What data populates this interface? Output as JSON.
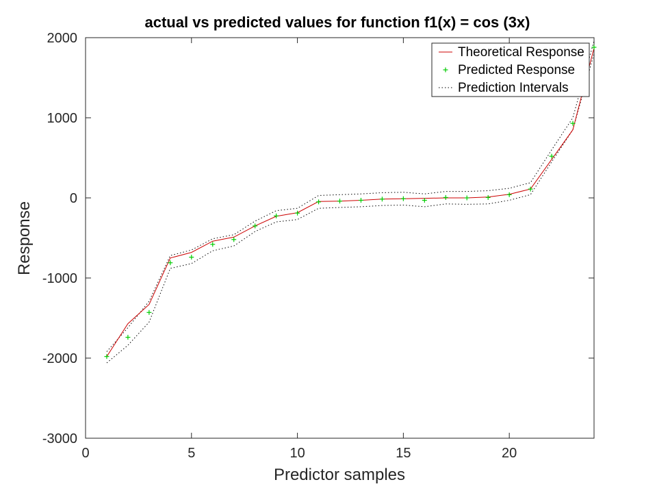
{
  "chart_data": {
    "type": "line",
    "title": "actual vs predicted values for function f1(x) = cos (3x)",
    "xlabel": "Predictor samples",
    "ylabel": "Response",
    "xlim": [
      0,
      24
    ],
    "ylim": [
      -3000,
      2000
    ],
    "xticks": [
      0,
      5,
      10,
      15,
      20
    ],
    "yticks": [
      -3000,
      -2000,
      -1000,
      0,
      1000,
      2000
    ],
    "grid": false,
    "legend_position": "top-right",
    "x": [
      1,
      2,
      3,
      4,
      5,
      6,
      7,
      8,
      9,
      10,
      11,
      12,
      13,
      14,
      15,
      16,
      17,
      18,
      19,
      20,
      21,
      22,
      23,
      24
    ],
    "series": [
      {
        "name": "Theoretical Response",
        "style": "line",
        "color": "#cc0000",
        "values": [
          -1980,
          -1570,
          -1330,
          -750,
          -680,
          -540,
          -490,
          -350,
          -230,
          -185,
          -45,
          -40,
          -30,
          -15,
          -10,
          -5,
          0,
          0,
          10,
          45,
          110,
          480,
          850,
          1870
        ]
      },
      {
        "name": "Predicted Response",
        "style": "marker",
        "color": "#00cc00",
        "values": [
          -1980,
          -1740,
          -1430,
          -810,
          -740,
          -580,
          -520,
          -350,
          -225,
          -190,
          -50,
          -40,
          -30,
          -15,
          -10,
          -30,
          5,
          0,
          5,
          40,
          110,
          520,
          930,
          1880
        ]
      },
      {
        "name": "Prediction Intervals",
        "style": "dotted",
        "color": "#000000",
        "upper": [
          -1920,
          -1620,
          -1290,
          -720,
          -650,
          -510,
          -460,
          -290,
          -160,
          -130,
          30,
          40,
          50,
          65,
          70,
          50,
          80,
          80,
          90,
          120,
          190,
          600,
          1000,
          1960
        ],
        "lower": [
          -2060,
          -1840,
          -1550,
          -880,
          -820,
          -660,
          -600,
          -420,
          -300,
          -270,
          -130,
          -120,
          -110,
          -95,
          -90,
          -110,
          -75,
          -80,
          -75,
          -30,
          40,
          450,
          850,
          1800
        ]
      }
    ]
  }
}
